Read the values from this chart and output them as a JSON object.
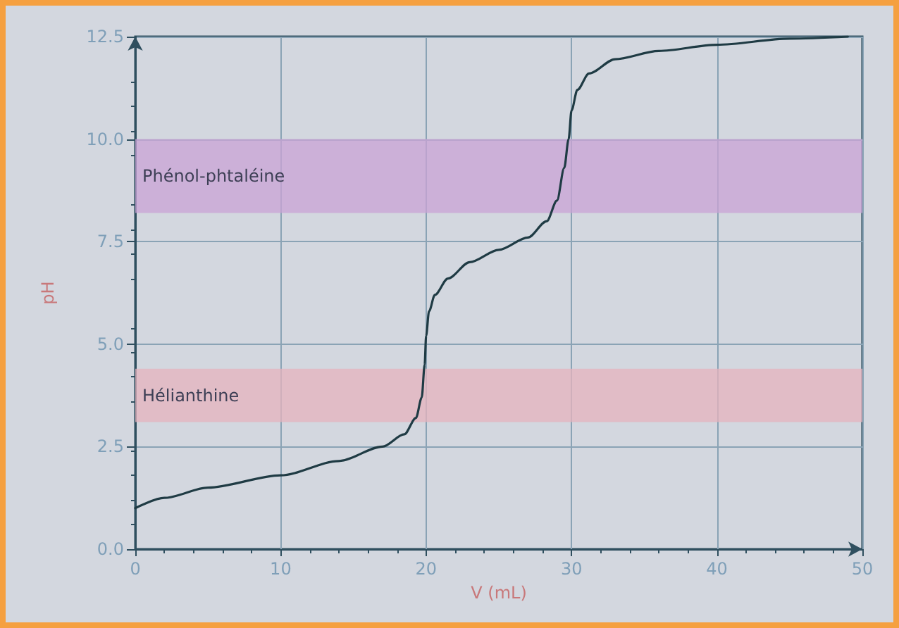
{
  "chart_data": {
    "type": "line",
    "xlabel": "V (mL)",
    "ylabel": "pH",
    "xlim": [
      0,
      50
    ],
    "xticks": [
      0,
      10,
      20,
      30,
      40,
      50
    ],
    "ylim": [
      0,
      12.5
    ],
    "yticks": [
      {
        "value": 0,
        "label": "0.0"
      },
      2.5,
      {
        "value": 5,
        "label": "5.0"
      },
      7.5,
      {
        "value": 10,
        "label": "10.0"
      },
      12.5
    ],
    "grid": true,
    "marker": "none",
    "line_style": "solid",
    "bands": [
      {
        "axis": "y",
        "from": 8.2,
        "to": 10,
        "label": "Phénol-phtaléine",
        "color": "#c9a3d6"
      },
      {
        "axis": "y",
        "from": 3.1,
        "to": 4.4,
        "label": "Hélianthine",
        "color": "#e5b3bd"
      }
    ],
    "series": [
      {
        "color": "#1f3b44",
        "x": [
          0,
          2,
          5,
          10,
          14,
          17,
          18.5,
          19.3,
          19.7,
          19.9,
          20,
          20.2,
          20.6,
          21.5,
          23,
          25,
          27,
          28.3,
          29,
          29.5,
          29.8,
          30,
          30.4,
          31.2,
          33,
          36,
          40,
          45,
          49
        ],
        "values": [
          1.0,
          1.25,
          1.5,
          1.8,
          2.15,
          2.5,
          2.8,
          3.2,
          3.7,
          4.5,
          5.2,
          5.8,
          6.2,
          6.6,
          7.0,
          7.3,
          7.6,
          8.0,
          8.5,
          9.3,
          10.0,
          10.7,
          11.2,
          11.6,
          11.95,
          12.15,
          12.3,
          12.45,
          12.5
        ]
      }
    ]
  }
}
